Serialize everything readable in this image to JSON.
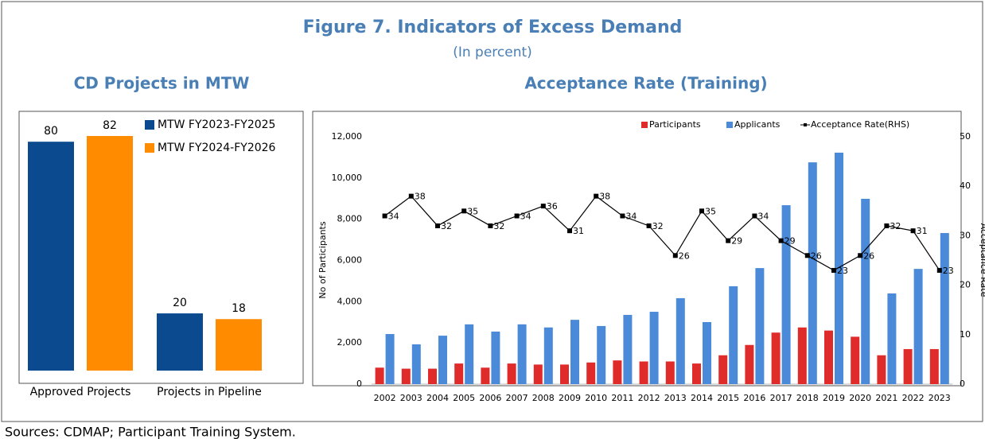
{
  "title": "Figure 7. Indicators of Excess Demand",
  "subtitle": "(In percent)",
  "source": "Sources: CDMAP; Participant Training System.",
  "chart_data": [
    {
      "type": "bar",
      "title": "CD Projects in MTW",
      "categories": [
        "Approved Projects",
        "Projects in Pipeline"
      ],
      "series": [
        {
          "name": "MTW FY2023-FY2025",
          "color": "#0b4a8f",
          "values": [
            80,
            20
          ]
        },
        {
          "name": "MTW FY2024-FY2026",
          "color": "#ff8c00",
          "values": [
            82,
            18
          ]
        }
      ],
      "legend": "top-right"
    },
    {
      "type": "bar",
      "title": "Acceptance Rate (Training)",
      "ylabel": "No of Participants",
      "y2label": "Acceptance Rate",
      "categories": [
        "2002",
        "2003",
        "2004",
        "2005",
        "2006",
        "2007",
        "2008",
        "2009",
        "2010",
        "2011",
        "2012",
        "2013",
        "2014",
        "2015",
        "2016",
        "2017",
        "2018",
        "2019",
        "2020",
        "2021",
        "2022",
        "2023"
      ],
      "series": [
        {
          "name": "Participants",
          "color": "#e02b2b",
          "values": [
            800,
            750,
            750,
            1000,
            800,
            1000,
            950,
            950,
            1050,
            1150,
            1100,
            1100,
            1000,
            1400,
            1900,
            2500,
            2750,
            2600,
            2300,
            1400,
            1700,
            1700
          ]
        },
        {
          "name": "Applicants",
          "color": "#4a8ad8",
          "values": [
            2430,
            1930,
            2350,
            2900,
            2550,
            2900,
            2750,
            3120,
            2820,
            3360,
            3510,
            4170,
            3010,
            4750,
            5630,
            8680,
            10760,
            11230,
            8990,
            4400,
            5590,
            7330
          ]
        },
        {
          "name": "Acceptance Rate(RHS)",
          "color": "#000000",
          "type": "line",
          "axis": "y2",
          "values": [
            34,
            38,
            32,
            35,
            32,
            34,
            36,
            31,
            38,
            34,
            32,
            26,
            35,
            29,
            34,
            29,
            26,
            23,
            26,
            32,
            31,
            23
          ]
        }
      ],
      "ylim": [
        0,
        12000
      ],
      "yticks": [
        0,
        {
          "value": 2000,
          "label": "2,000"
        },
        {
          "value": 4000,
          "label": "4,000"
        },
        {
          "value": 6000,
          "label": "6,000"
        },
        {
          "value": 8000,
          "label": "8,000"
        },
        {
          "value": 10000,
          "label": "10,000"
        },
        {
          "value": 12000,
          "label": "12,000"
        }
      ],
      "y2lim": [
        0,
        50
      ],
      "y2ticks": [
        0,
        10,
        20,
        30,
        40,
        50
      ],
      "legend": "top"
    }
  ]
}
